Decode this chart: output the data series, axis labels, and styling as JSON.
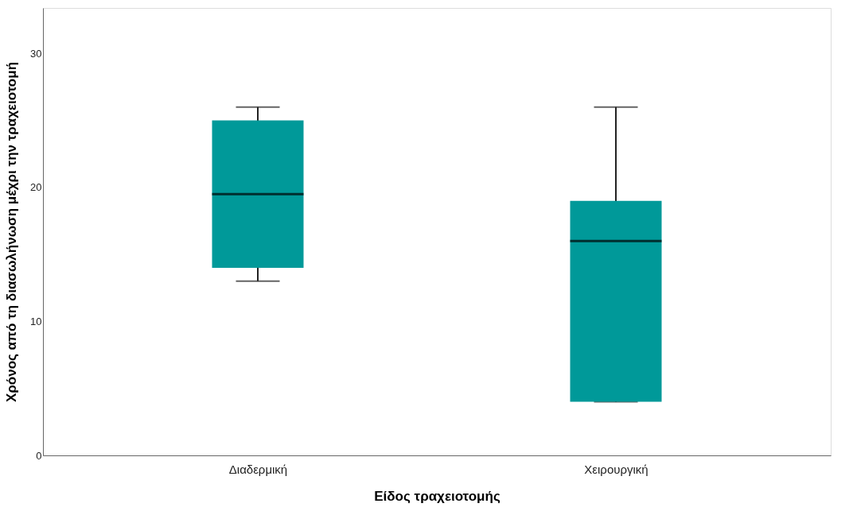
{
  "chart_data": {
    "type": "box",
    "xlabel": "Είδος τραχειοτομής",
    "ylabel": "Χρόνος από τη διασωλήνωση μέχρι την τραχειοτομή",
    "categories": [
      "Διαδερμική",
      "Χειρουργική"
    ],
    "color": "#009999",
    "boxes": [
      {
        "low": 13,
        "q1": 14,
        "median": 19.5,
        "q3": 25,
        "high": 26
      },
      {
        "low": 4,
        "q1": 4,
        "median": 16,
        "q3": 19,
        "high": 26
      }
    ],
    "ylim": [
      0,
      33.4
    ],
    "yticks": [
      0,
      10,
      20,
      30
    ]
  }
}
